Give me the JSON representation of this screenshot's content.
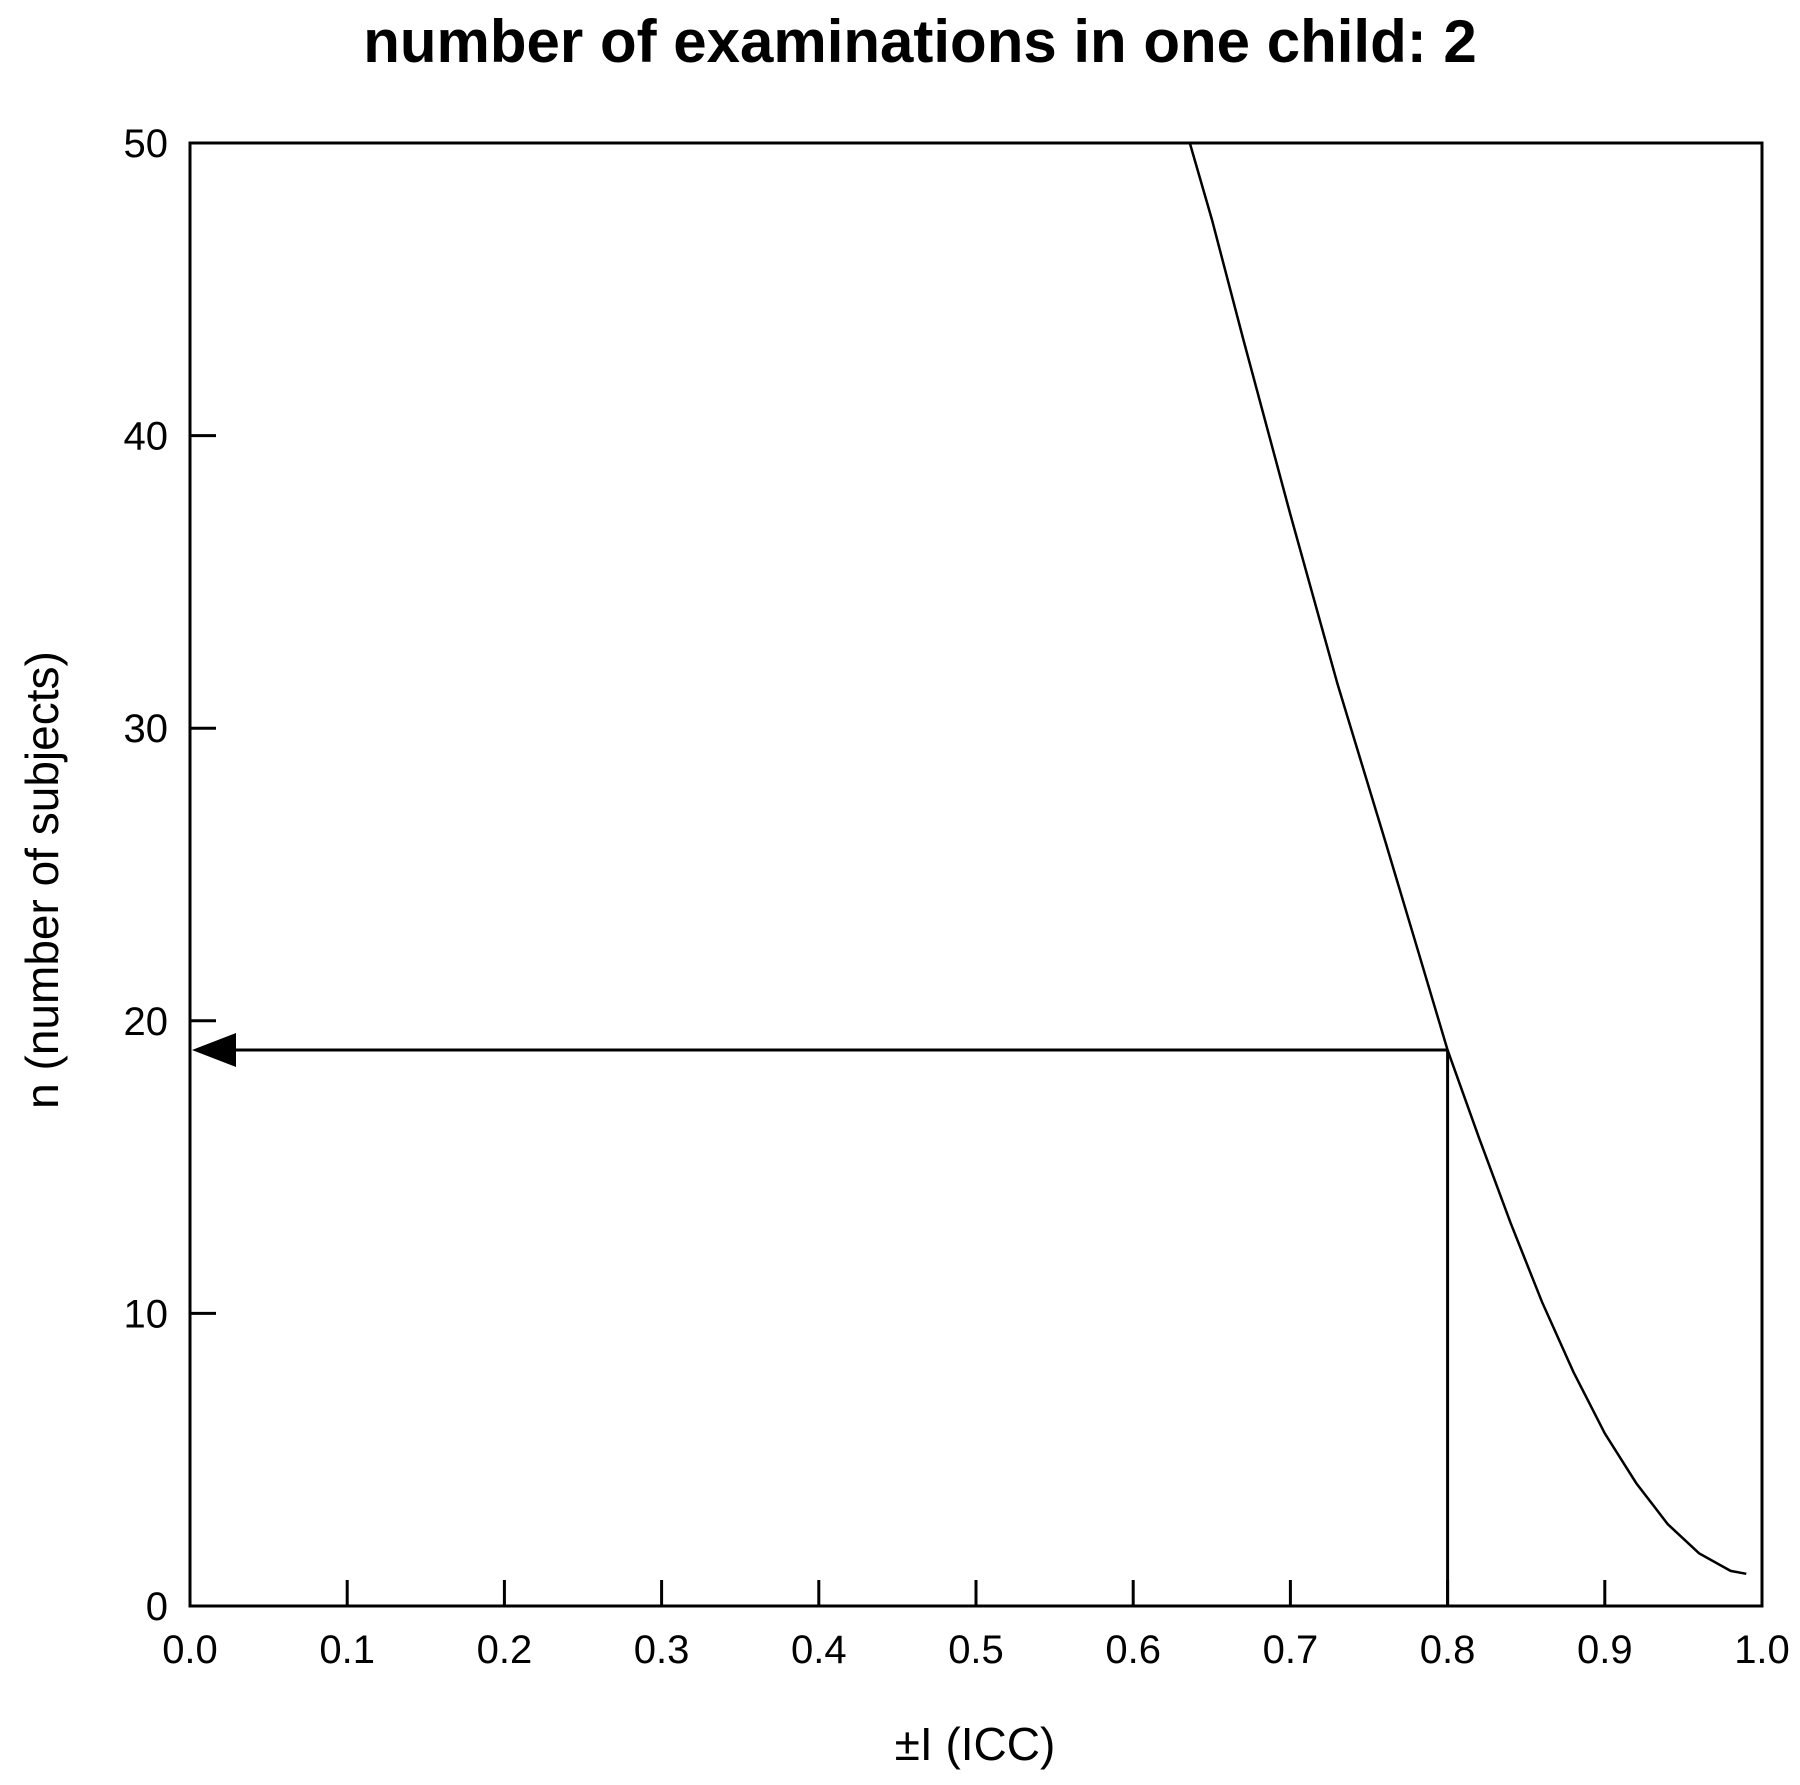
{
  "chart_data": {
    "type": "line",
    "title": "number of examinations in one child: 2",
    "xlabel": "±I (ICC)",
    "ylabel": "n (number of subjects)",
    "xlim": [
      0.0,
      1.0
    ],
    "ylim": [
      0,
      50
    ],
    "x_ticks": [
      "0.0",
      "0.1",
      "0.2",
      "0.3",
      "0.4",
      "0.5",
      "0.6",
      "0.7",
      "0.8",
      "0.9",
      "1.0"
    ],
    "y_ticks": [
      "0",
      "10",
      "20",
      "30",
      "40",
      "50"
    ],
    "grid": false,
    "legend": "none",
    "series": [
      {
        "x": [
          0.636,
          0.65,
          0.67,
          0.7,
          0.73,
          0.76,
          0.78,
          0.8,
          0.82,
          0.84,
          0.86,
          0.88,
          0.9,
          0.92,
          0.94,
          0.96,
          0.98,
          0.99
        ],
        "y": [
          50,
          47.4,
          43.3,
          37.3,
          31.5,
          26.2,
          22.6,
          19.0,
          16.0,
          13.1,
          10.4,
          8.0,
          5.9,
          4.2,
          2.8,
          1.8,
          1.2,
          1.1
        ]
      }
    ],
    "annotations": [
      {
        "type": "reference-vertical",
        "x": 0.8,
        "y_from": 0,
        "y_to": 19
      },
      {
        "type": "reference-arrow",
        "y": 19,
        "x_from": 0.8,
        "x_to": 0.0
      }
    ]
  }
}
